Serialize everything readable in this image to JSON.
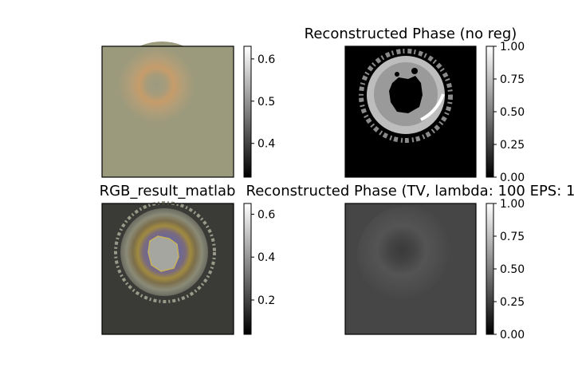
{
  "chart_data": [
    {
      "type": "heatmap",
      "title": "",
      "colorbar": {
        "colormap": "gray",
        "ticks": [
          0.4,
          0.5,
          0.6
        ],
        "range": [
          0.32,
          0.63
        ]
      },
      "description": "RGB image: olive-grey background with faint orange ring"
    },
    {
      "type": "heatmap",
      "title": "Reconstructed Phase (no reg)",
      "colorbar": {
        "colormap": "gray",
        "ticks": [
          0.0,
          0.25,
          0.5,
          0.75,
          1.0
        ],
        "tick_labels": [
          "0.00",
          "0.25",
          "0.50",
          "0.75",
          "1.00"
        ],
        "range": [
          0,
          1
        ]
      },
      "description": "Black background, bright grey disc with black central blob"
    },
    {
      "type": "heatmap",
      "title": "RGB_result_matlab",
      "colorbar": {
        "colormap": "gray",
        "ticks": [
          0.2,
          0.4,
          0.6
        ],
        "range": [
          0.04,
          0.65
        ]
      },
      "description": "Dark grey background, multicolor fringe ring with grey center"
    },
    {
      "type": "heatmap",
      "title": "Reconstructed Phase (TV, lambda: 100 EPS: 1",
      "colorbar": {
        "colormap": "gray",
        "ticks": [
          0.0,
          0.25,
          0.5,
          0.75,
          1.0
        ],
        "tick_labels": [
          "0.00",
          "0.25",
          "0.50",
          "0.75",
          "1.00"
        ],
        "range": [
          0,
          1
        ]
      },
      "description": "Dark grey background with faint slightly lighter ring"
    }
  ]
}
